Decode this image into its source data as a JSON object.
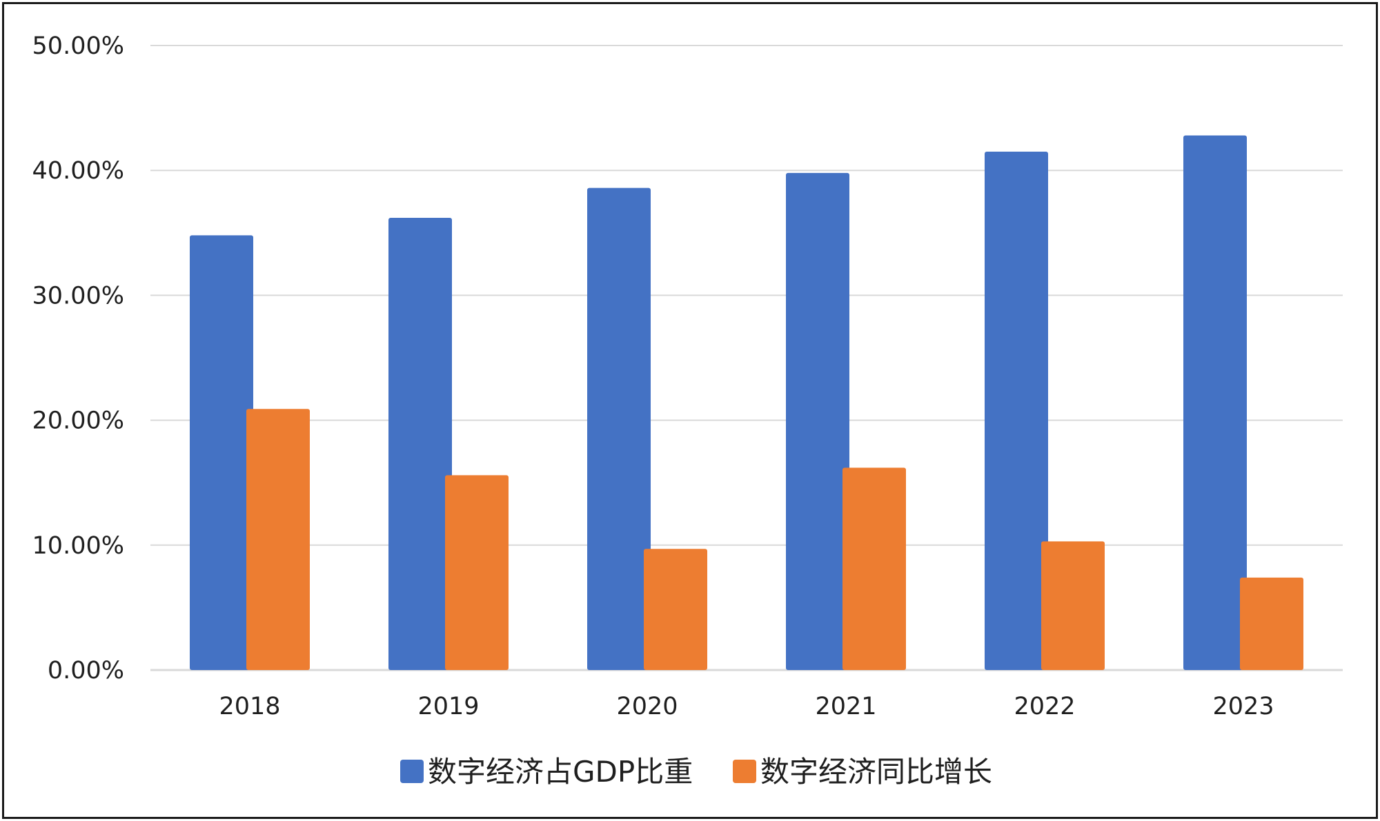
{
  "chart_data": {
    "type": "bar",
    "categories": [
      "2018",
      "2019",
      "2020",
      "2021",
      "2022",
      "2023"
    ],
    "series": [
      {
        "name": "数字经济占GDP比重",
        "values": [
          34.8,
          36.2,
          38.6,
          39.8,
          41.5,
          42.8
        ],
        "color": "#4472C4"
      },
      {
        "name": "数字经济同比增长",
        "values": [
          20.9,
          15.6,
          9.7,
          16.2,
          10.3,
          7.4
        ],
        "color": "#ED7D31"
      }
    ],
    "y_ticks": [
      "0.00%",
      "10.00%",
      "20.00%",
      "30.00%",
      "40.00%",
      "50.00%"
    ],
    "ylim": [
      0,
      50
    ],
    "grid": true,
    "legend_position": "bottom",
    "title": "",
    "xlabel": "",
    "ylabel": ""
  }
}
